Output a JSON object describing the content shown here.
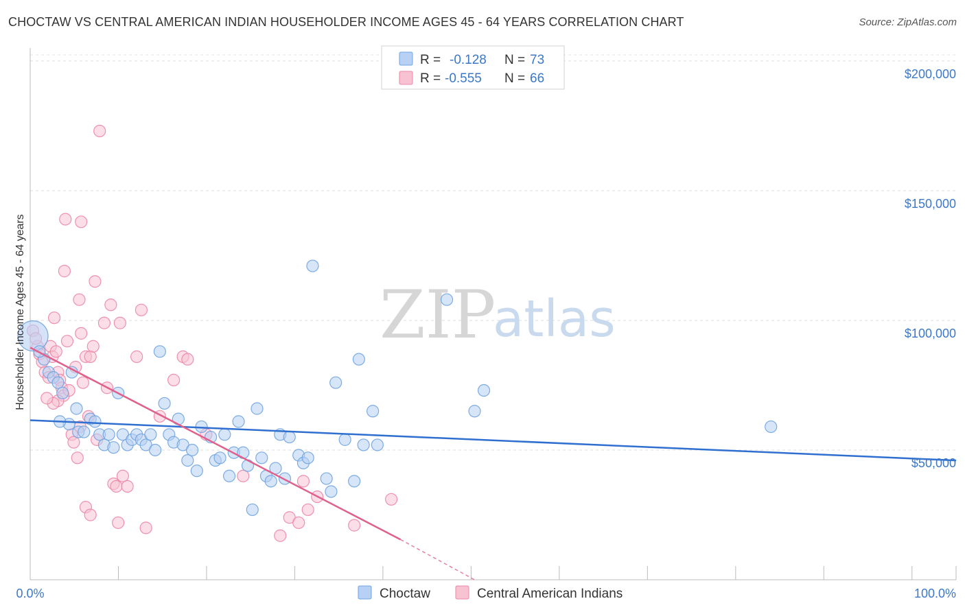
{
  "title": "CHOCTAW VS CENTRAL AMERICAN INDIAN HOUSEHOLDER INCOME AGES 45 - 64 YEARS CORRELATION CHART",
  "source": "Source: ZipAtlas.com",
  "watermark": {
    "zip": "ZIP",
    "atlas": "atlas"
  },
  "colors": {
    "choctaw": "#6fa3e0",
    "choctaw_fill": "#b7d0f3",
    "central": "#ec86a6",
    "central_fill": "#f7c3d3",
    "choctaw_line": "#2f6fd0",
    "central_line": "#e0608c",
    "tick_text": "#3b78c8"
  },
  "legend": {
    "rows": [
      {
        "r_label": "R =",
        "r_value": "-0.128",
        "n_label": "N =",
        "n_value": "73"
      },
      {
        "r_label": "R =",
        "r_value": "-0.555",
        "n_label": "N =",
        "n_value": "66"
      }
    ]
  },
  "chart_data": {
    "type": "scatter",
    "title": "CHOCTAW VS CENTRAL AMERICAN INDIAN HOUSEHOLDER INCOME AGES 45 - 64 YEARS CORRELATION CHART",
    "xlabel": "",
    "ylabel": "Householder Income Ages 45 - 64 years",
    "xlim": [
      0,
      100
    ],
    "ylim": [
      0,
      205000
    ],
    "x_tick_labels": [
      "0.0%",
      "100.0%"
    ],
    "y_ticks": [
      50000,
      100000,
      150000,
      200000
    ],
    "y_tick_labels": [
      "$50,000",
      "$100,000",
      "$150,000",
      "$200,000"
    ],
    "grid": true,
    "legend_position": "top-center",
    "series": [
      {
        "name": "Choctaw",
        "color": "#6fa3e0",
        "points": [
          [
            0.3,
            94000
          ],
          [
            1.5,
            85000
          ],
          [
            2.0,
            80000
          ],
          [
            2.5,
            78000
          ],
          [
            3.0,
            76000
          ],
          [
            3.5,
            72000
          ],
          [
            4.5,
            80000
          ],
          [
            5.0,
            66000
          ],
          [
            4.2,
            60000
          ],
          [
            3.2,
            61000
          ],
          [
            5.2,
            57000
          ],
          [
            5.8,
            57000
          ],
          [
            6.5,
            62000
          ],
          [
            7.0,
            61000
          ],
          [
            7.5,
            56000
          ],
          [
            8.0,
            52000
          ],
          [
            8.5,
            56000
          ],
          [
            9.0,
            51000
          ],
          [
            9.5,
            72000
          ],
          [
            10.0,
            56000
          ],
          [
            10.5,
            52000
          ],
          [
            11.0,
            54000
          ],
          [
            11.5,
            56000
          ],
          [
            12.0,
            54000
          ],
          [
            12.5,
            52000
          ],
          [
            13.0,
            56000
          ],
          [
            13.5,
            50000
          ],
          [
            14.0,
            88000
          ],
          [
            14.5,
            68000
          ],
          [
            15.0,
            56000
          ],
          [
            15.5,
            53000
          ],
          [
            16.0,
            62000
          ],
          [
            16.5,
            52000
          ],
          [
            17.0,
            46000
          ],
          [
            17.5,
            50000
          ],
          [
            18.0,
            42000
          ],
          [
            18.5,
            59000
          ],
          [
            19.5,
            55000
          ],
          [
            20.0,
            46000
          ],
          [
            20.5,
            47000
          ],
          [
            21.0,
            56000
          ],
          [
            21.5,
            40000
          ],
          [
            22.0,
            49000
          ],
          [
            22.5,
            61000
          ],
          [
            23.0,
            49000
          ],
          [
            23.5,
            44000
          ],
          [
            24.0,
            27000
          ],
          [
            24.5,
            66000
          ],
          [
            25.0,
            47000
          ],
          [
            25.5,
            40000
          ],
          [
            26.0,
            38000
          ],
          [
            26.5,
            43000
          ],
          [
            27.0,
            56000
          ],
          [
            27.5,
            39000
          ],
          [
            28.0,
            55000
          ],
          [
            29.0,
            48000
          ],
          [
            29.5,
            45000
          ],
          [
            30.0,
            47000
          ],
          [
            30.5,
            121000
          ],
          [
            32.0,
            39000
          ],
          [
            32.5,
            34000
          ],
          [
            33.0,
            76000
          ],
          [
            34.0,
            54000
          ],
          [
            35.0,
            38000
          ],
          [
            35.5,
            85000
          ],
          [
            36.0,
            52000
          ],
          [
            37.0,
            65000
          ],
          [
            37.5,
            52000
          ],
          [
            45.0,
            108000
          ],
          [
            48.0,
            65000
          ],
          [
            49.0,
            73000
          ],
          [
            80.0,
            59000
          ],
          [
            1.0,
            88000
          ]
        ],
        "trend": {
          "x": [
            0,
            100
          ],
          "y": [
            61500,
            46000
          ]
        }
      },
      {
        "name": "Central American Indians",
        "color": "#ec86a6",
        "points": [
          [
            0.3,
            96000
          ],
          [
            0.8,
            90000
          ],
          [
            1.0,
            87000
          ],
          [
            1.3,
            84000
          ],
          [
            1.6,
            80000
          ],
          [
            2.0,
            78000
          ],
          [
            2.2,
            90000
          ],
          [
            2.4,
            86000
          ],
          [
            2.6,
            101000
          ],
          [
            2.8,
            88000
          ],
          [
            3.0,
            80000
          ],
          [
            3.2,
            77000
          ],
          [
            3.4,
            74000
          ],
          [
            3.6,
            71000
          ],
          [
            3.0,
            69000
          ],
          [
            2.5,
            68000
          ],
          [
            4.0,
            92000
          ],
          [
            4.2,
            73000
          ],
          [
            4.5,
            56000
          ],
          [
            4.7,
            53000
          ],
          [
            4.9,
            82000
          ],
          [
            5.1,
            47000
          ],
          [
            5.3,
            108000
          ],
          [
            5.5,
            95000
          ],
          [
            5.7,
            76000
          ],
          [
            6.0,
            86000
          ],
          [
            5.4,
            59000
          ],
          [
            6.3,
            63000
          ],
          [
            6.5,
            86000
          ],
          [
            6.8,
            90000
          ],
          [
            7.0,
            115000
          ],
          [
            7.2,
            54000
          ],
          [
            3.8,
            139000
          ],
          [
            5.5,
            138000
          ],
          [
            3.7,
            119000
          ],
          [
            7.5,
            173000
          ],
          [
            8.0,
            99000
          ],
          [
            8.3,
            74000
          ],
          [
            8.7,
            106000
          ],
          [
            9.0,
            37000
          ],
          [
            9.3,
            36000
          ],
          [
            9.7,
            99000
          ],
          [
            10.0,
            40000
          ],
          [
            10.5,
            36000
          ],
          [
            11.5,
            86000
          ],
          [
            12.0,
            104000
          ],
          [
            12.5,
            20000
          ],
          [
            14.0,
            63000
          ],
          [
            15.5,
            77000
          ],
          [
            16.5,
            86000
          ],
          [
            17.0,
            85000
          ],
          [
            9.5,
            22000
          ],
          [
            6.0,
            28000
          ],
          [
            6.5,
            25000
          ],
          [
            19.0,
            56000
          ],
          [
            23.0,
            40000
          ],
          [
            27.0,
            17000
          ],
          [
            28.0,
            24000
          ],
          [
            29.0,
            22000
          ],
          [
            29.5,
            38000
          ],
          [
            30.0,
            27000
          ],
          [
            31.0,
            32000
          ],
          [
            35.0,
            21000
          ],
          [
            39.0,
            31000
          ],
          [
            1.8,
            70000
          ],
          [
            0.6,
            93000
          ]
        ],
        "trend": {
          "x": [
            0,
            40
          ],
          "y": [
            89500,
            15500
          ]
        },
        "trend_dashed": {
          "x": [
            40,
            48
          ],
          "y": [
            15500,
            0
          ]
        }
      }
    ]
  },
  "bottom_legend": [
    "Choctaw",
    "Central American Indians"
  ]
}
